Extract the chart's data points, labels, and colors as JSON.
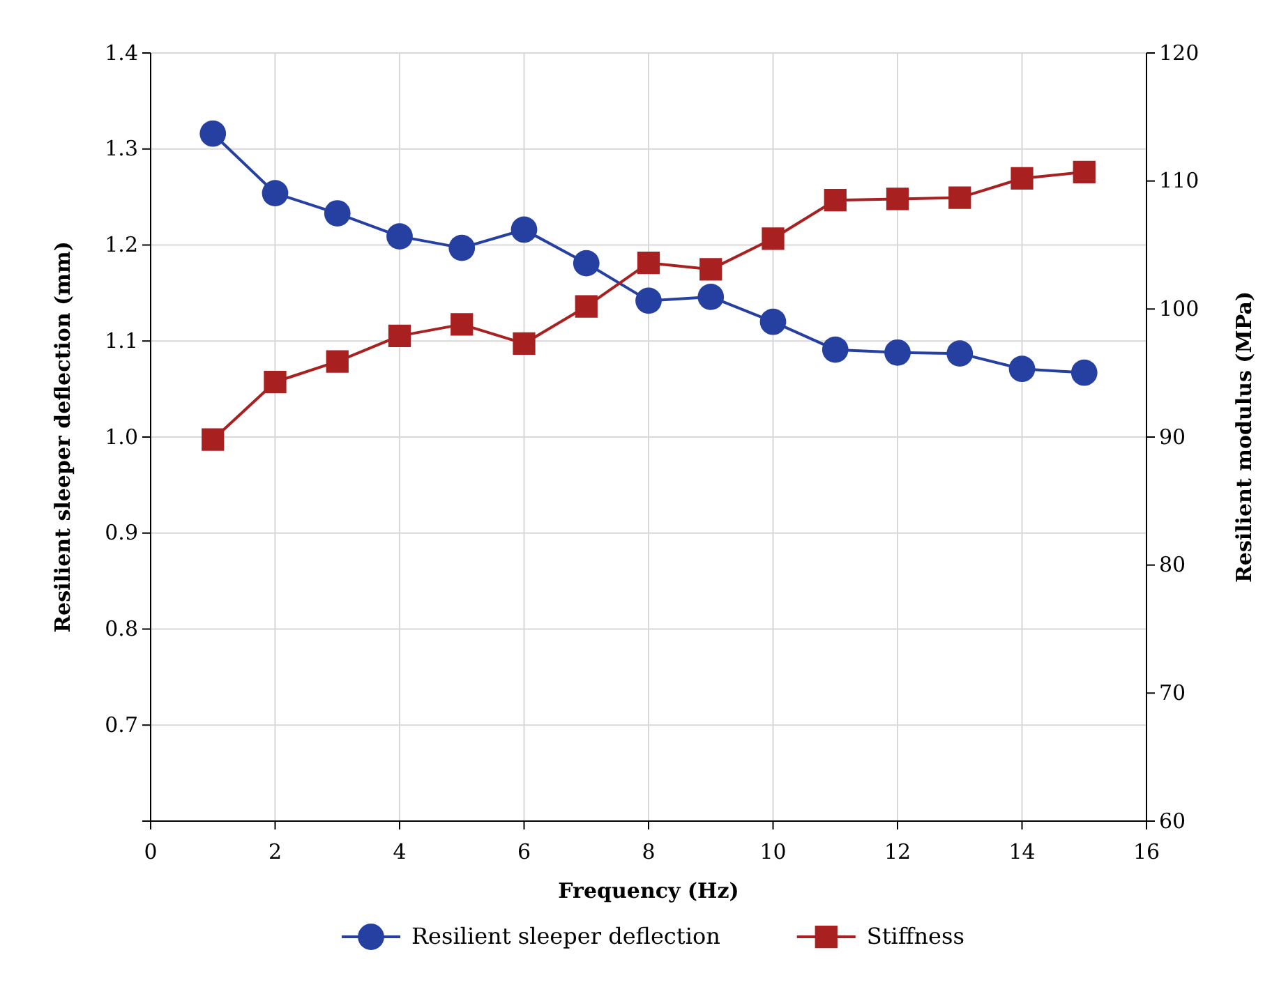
{
  "chart_data": {
    "type": "line",
    "xlabel": "Frequency (Hz)",
    "ylabel": "Resilient sleeper deflection (mm)",
    "y2label": "Resilient modulus (MPa)",
    "x": [
      1,
      2,
      3,
      4,
      5,
      6,
      7,
      8,
      9,
      10,
      11,
      12,
      13,
      14,
      15
    ],
    "xlim": [
      0,
      16
    ],
    "xticks": [
      0,
      2,
      4,
      6,
      8,
      10,
      12,
      14,
      16
    ],
    "ylim": [
      0.6,
      1.4
    ],
    "yticks": [
      {
        "value": 0.6,
        "label": null
      },
      0.7,
      0.8,
      0.9,
      {
        "value": 1,
        "label": "1.0"
      },
      1.1,
      1.2,
      1.3,
      1.4
    ],
    "y2lim": [
      60,
      120
    ],
    "y2ticks": [
      60,
      70,
      80,
      90,
      100,
      110,
      120
    ],
    "grid": true,
    "legend": "bottom",
    "series": [
      {
        "name": "Resilient sleeper deflection",
        "color": "#2540a0",
        "marker": "circle",
        "values": [
          1.316,
          1.254,
          1.233,
          1.209,
          1.197,
          1.216,
          1.181,
          1.142,
          1.146,
          1.12,
          1.091,
          1.088,
          1.087,
          1.071,
          1.067
        ]
      },
      {
        "name": "Stiffness",
        "color": "#a82020",
        "marker": "square",
        "axis": "y2",
        "values": [
          89.8,
          94.3,
          95.9,
          97.9,
          98.8,
          97.3,
          100.2,
          103.6,
          103.1,
          105.5,
          108.5,
          108.6,
          108.7,
          110.2,
          110.7
        ]
      }
    ]
  }
}
